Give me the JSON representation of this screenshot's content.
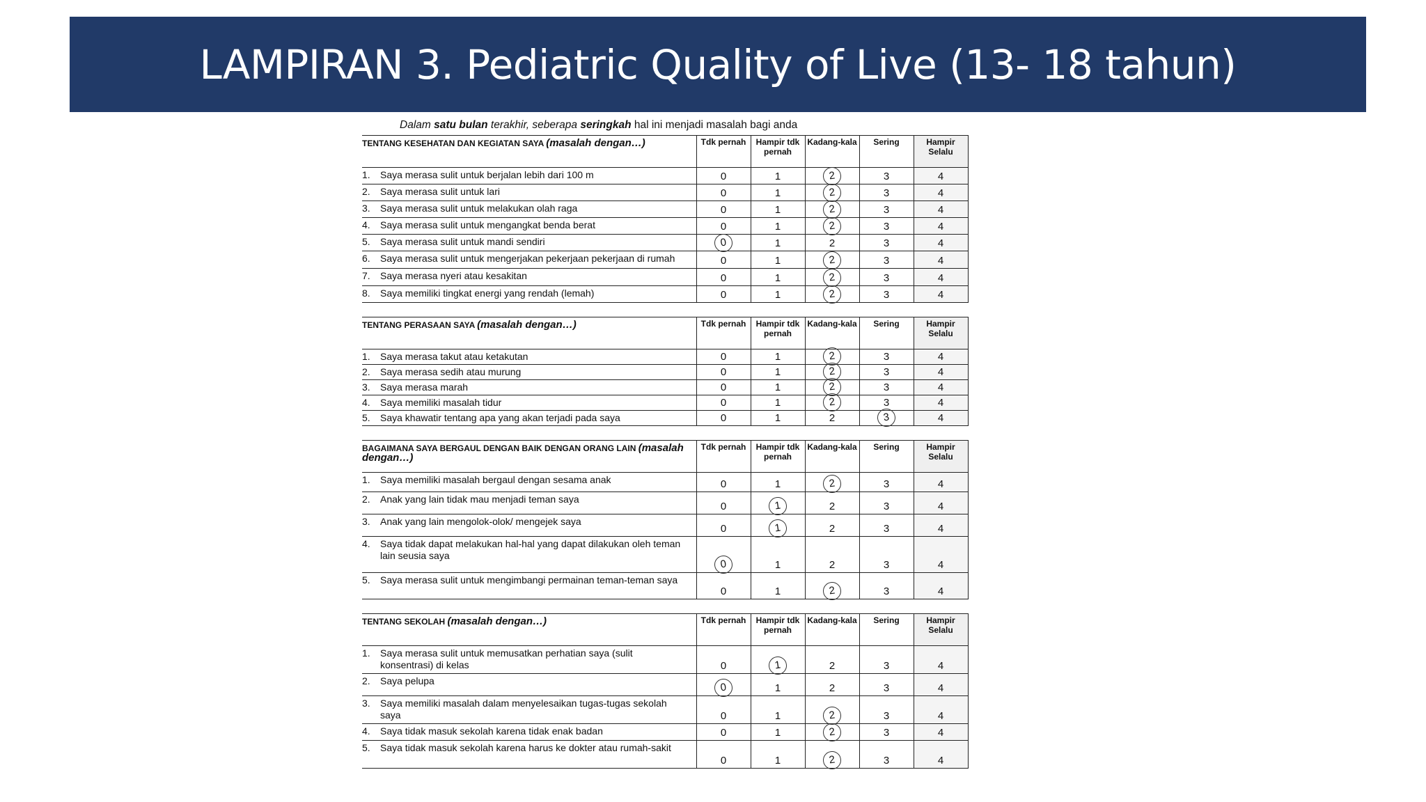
{
  "title": "LAMPIRAN 3. Pediatric Quality of Live (13- 18 tahun)",
  "instruction": {
    "pre": "Dalam ",
    "bold1": "satu bulan",
    "mid": " terakhir, seberapa ",
    "bold2": "seringkah",
    "post": " hal ini menjadi masalah bagi anda"
  },
  "scale_headers": [
    "Tdk pernah",
    "Hampir tdk pernah",
    "Kadang-kala",
    "Sering",
    "Hampir Selalu"
  ],
  "scale_values": [
    "0",
    "1",
    "2",
    "3",
    "4"
  ],
  "sections": [
    {
      "title": "TENTANG KESEHATAN DAN KEGIATAN SAYA",
      "subtitle": "(masalah dengan…)",
      "items": [
        {
          "num": "1.",
          "text": "Saya merasa sulit untuk berjalan lebih dari 100 m",
          "answer": 2
        },
        {
          "num": "2.",
          "text": "Saya merasa sulit untuk lari",
          "answer": 2
        },
        {
          "num": "3.",
          "text": "Saya merasa sulit untuk melakukan olah raga",
          "answer": 2
        },
        {
          "num": "4.",
          "text": "Saya merasa sulit untuk mengangkat benda  berat",
          "answer": 2
        },
        {
          "num": "5.",
          "text": "Saya merasa sulit untuk mandi sendiri",
          "answer": 0
        },
        {
          "num": "6.",
          "text": "Saya merasa sulit untuk mengerjakan pekerjaan pekerjaan di rumah",
          "answer": 2
        },
        {
          "num": "7.",
          "text": "Saya merasa nyeri atau kesakitan",
          "answer": 2
        },
        {
          "num": "8.",
          "text": "Saya memiliki tingkat energi yang rendah (lemah)",
          "answer": 2
        }
      ]
    },
    {
      "title": "TENTANG PERASAAN SAYA",
      "subtitle": "(masalah dengan…)",
      "items": [
        {
          "num": "1.",
          "text": "Saya merasa takut atau ketakutan",
          "answer": 2
        },
        {
          "num": "2.",
          "text": "Saya merasa sedih atau murung",
          "answer": 2
        },
        {
          "num": "3.",
          "text": "Saya merasa marah",
          "answer": 2
        },
        {
          "num": "4.",
          "text": "Saya memiliki masalah tidur",
          "answer": 2
        },
        {
          "num": "5.",
          "text": "Saya khawatir tentang apa yang akan terjadi pada saya",
          "answer": 3
        }
      ]
    },
    {
      "title": "BAGAIMANA SAYA BERGAUL DENGAN BAIK DENGAN ORANG LAIN",
      "subtitle": "(masalah dengan…)",
      "items": [
        {
          "num": "1.",
          "text": "Saya memiliki masalah bergaul dengan sesama anak",
          "answer": 2
        },
        {
          "num": "2.",
          "text": "Anak yang lain tidak mau menjadi teman saya",
          "answer": 1
        },
        {
          "num": "3.",
          "text": "Anak yang lain mengolok-olok/ mengejek  saya",
          "answer": 1
        },
        {
          "num": "4.",
          "text": "Saya tidak dapat melakukan hal-hal yang dapat dilakukan oleh teman lain seusia saya",
          "answer": 0
        },
        {
          "num": "5.",
          "text": "Saya merasa sulit untuk mengimbangi permainan teman-teman saya",
          "answer": 2
        }
      ]
    },
    {
      "title": "TENTANG SEKOLAH",
      "subtitle": "(masalah dengan…)",
      "items": [
        {
          "num": "1.",
          "text": "Saya merasa sulit untuk memusatkan perhatian saya (sulit konsentrasi) di kelas",
          "answer": 1
        },
        {
          "num": "2.",
          "text": "Saya pelupa",
          "answer": 0
        },
        {
          "num": "3.",
          "text": "Saya memiliki masalah dalam menyelesaikan tugas-tugas sekolah saya",
          "answer": 2
        },
        {
          "num": "4.",
          "text": "Saya tidak masuk sekolah karena tidak enak badan",
          "answer": 2
        },
        {
          "num": "5.",
          "text": "Saya tidak masuk sekolah karena harus ke dokter atau rumah-sakit",
          "answer": 2
        }
      ]
    }
  ]
}
